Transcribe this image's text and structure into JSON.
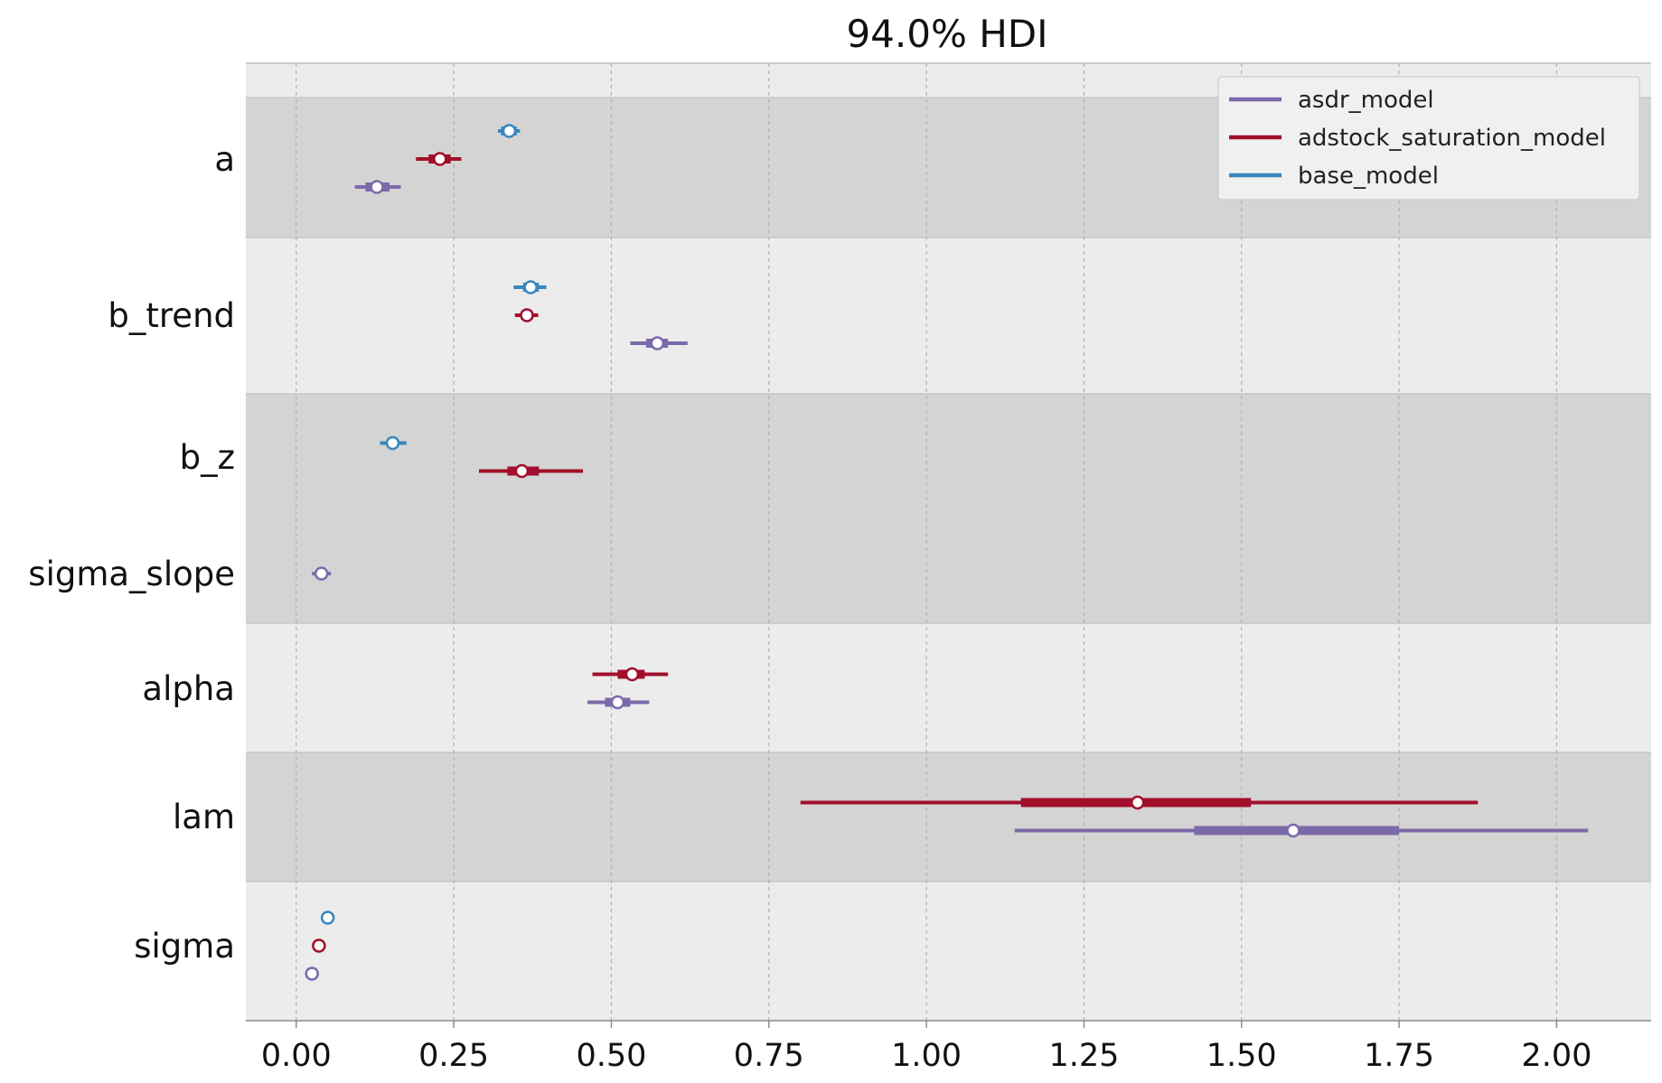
{
  "chart_data": {
    "type": "forest",
    "title": "94.0% HDI",
    "xlabel": "",
    "ylabel": "",
    "xlim": [
      -0.08,
      2.15
    ],
    "xticks": [
      0.0,
      0.25,
      0.5,
      0.75,
      1.0,
      1.25,
      1.5,
      1.75,
      2.0
    ],
    "xtick_labels": [
      "0.00",
      "0.25",
      "0.50",
      "0.75",
      "1.00",
      "1.25",
      "1.50",
      "1.75",
      "2.00"
    ],
    "grid": "vertical dashed",
    "legend_position": "top-right",
    "series": [
      {
        "name": "asdr_model",
        "color": "#7b6aa9"
      },
      {
        "name": "adstock_saturation_model",
        "color": "#a20f2a"
      },
      {
        "name": "base_model",
        "color": "#3987bd"
      }
    ],
    "variables": [
      {
        "name": "a",
        "estimates": [
          {
            "model": "base_model",
            "mean": 0.338,
            "hdi_94": [
              0.32,
              0.355
            ],
            "iqr": [
              0.325,
              0.35
            ]
          },
          {
            "model": "adstock_saturation_model",
            "mean": 0.228,
            "hdi_94": [
              0.19,
              0.262
            ],
            "iqr": [
              0.21,
              0.245
            ]
          },
          {
            "model": "asdr_model",
            "mean": 0.128,
            "hdi_94": [
              0.093,
              0.166
            ],
            "iqr": [
              0.11,
              0.148
            ]
          }
        ]
      },
      {
        "name": "b_trend",
        "estimates": [
          {
            "model": "base_model",
            "mean": 0.372,
            "hdi_94": [
              0.345,
              0.397
            ],
            "iqr": [
              0.36,
              0.385
            ]
          },
          {
            "model": "adstock_saturation_model",
            "mean": 0.366,
            "hdi_94": [
              0.347,
              0.384
            ],
            "iqr": [
              0.357,
              0.375
            ]
          },
          {
            "model": "asdr_model",
            "mean": 0.573,
            "hdi_94": [
              0.53,
              0.621
            ],
            "iqr": [
              0.555,
              0.59
            ]
          }
        ]
      },
      {
        "name": "b_z",
        "estimates": [
          {
            "model": "base_model",
            "mean": 0.153,
            "hdi_94": [
              0.133,
              0.175
            ],
            "iqr": [
              0.145,
              0.162
            ]
          },
          {
            "model": "adstock_saturation_model",
            "mean": 0.358,
            "hdi_94": [
              0.29,
              0.455
            ],
            "iqr": [
              0.335,
              0.385
            ]
          }
        ]
      },
      {
        "name": "sigma_slope",
        "estimates": [
          {
            "model": "asdr_model",
            "mean": 0.04,
            "hdi_94": [
              0.025,
              0.055
            ],
            "iqr": [
              0.033,
              0.047
            ]
          }
        ]
      },
      {
        "name": "alpha",
        "estimates": [
          {
            "model": "adstock_saturation_model",
            "mean": 0.533,
            "hdi_94": [
              0.47,
              0.59
            ],
            "iqr": [
              0.51,
              0.553
            ]
          },
          {
            "model": "asdr_model",
            "mean": 0.51,
            "hdi_94": [
              0.462,
              0.56
            ],
            "iqr": [
              0.49,
              0.53
            ]
          }
        ]
      },
      {
        "name": "lam",
        "estimates": [
          {
            "model": "adstock_saturation_model",
            "mean": 1.335,
            "hdi_94": [
              0.8,
              1.875
            ],
            "iqr": [
              1.15,
              1.515
            ]
          },
          {
            "model": "asdr_model",
            "mean": 1.582,
            "hdi_94": [
              1.14,
              2.05
            ],
            "iqr": [
              1.425,
              1.75
            ]
          }
        ]
      },
      {
        "name": "sigma",
        "estimates": [
          {
            "model": "base_model",
            "mean": 0.05,
            "hdi_94": [
              0.047,
              0.053
            ],
            "iqr": [
              0.048,
              0.052
            ]
          },
          {
            "model": "adstock_saturation_model",
            "mean": 0.036,
            "hdi_94": [
              0.033,
              0.039
            ],
            "iqr": [
              0.035,
              0.037
            ]
          },
          {
            "model": "asdr_model",
            "mean": 0.025,
            "hdi_94": [
              0.022,
              0.028
            ],
            "iqr": [
              0.024,
              0.026
            ]
          }
        ]
      }
    ]
  }
}
